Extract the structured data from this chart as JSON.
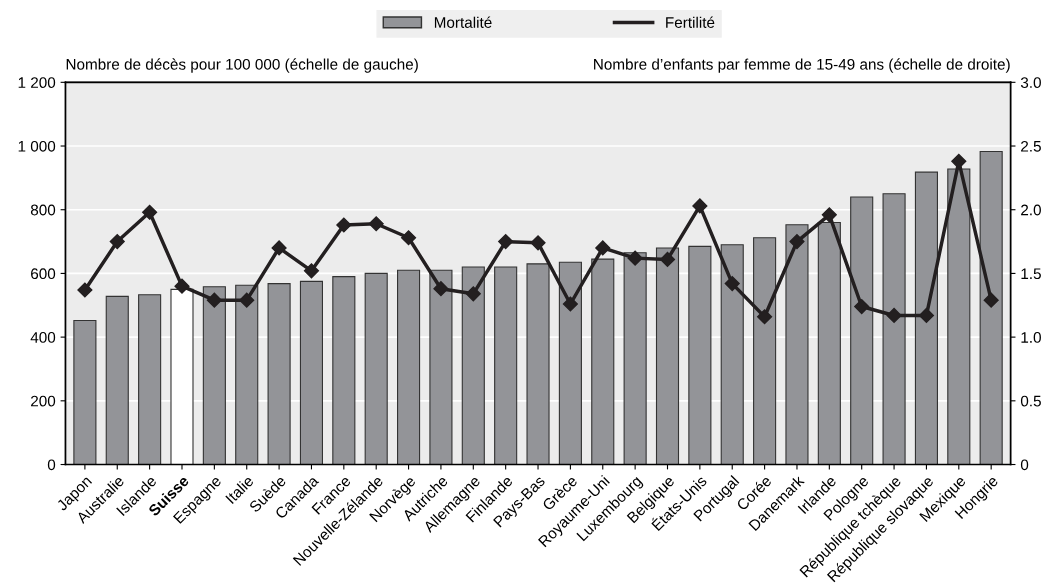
{
  "chart_data": {
    "type": "bar",
    "categories": [
      "Japon",
      "Australie",
      "Islande",
      "Suisse",
      "Espagne",
      "Italie",
      "Suède",
      "Canada",
      "France",
      "Nouvelle-Zélande",
      "Norvège",
      "Autriche",
      "Allemagne",
      "Finlande",
      "Pays-Bas",
      "Grèce",
      "Royaume-Uni",
      "Luxembourg",
      "Belgique",
      "États-Unis",
      "Portugal",
      "Corée",
      "Danemark",
      "Irlande",
      "Pologne",
      "République tchèque",
      "République slovaque",
      "Mexique",
      "Hongrie"
    ],
    "series": [
      {
        "name": "Mortalité",
        "color": "#939498",
        "colors": [
          "#939498",
          "#939498",
          "#939498",
          "#ffffff",
          "#939498",
          "#939498",
          "#939498",
          "#939498",
          "#939498",
          "#939498",
          "#939498",
          "#939498",
          "#939498",
          "#939498",
          "#939498",
          "#939498",
          "#939498",
          "#939498",
          "#939498",
          "#939498",
          "#939498",
          "#939498",
          "#939498",
          "#939498",
          "#939498",
          "#939498",
          "#939498",
          "#939498",
          "#939498"
        ],
        "values": [
          452,
          528,
          533,
          550,
          558,
          563,
          568,
          575,
          590,
          600,
          610,
          610,
          620,
          620,
          630,
          635,
          645,
          665,
          680,
          685,
          690,
          712,
          753,
          760,
          840,
          850,
          918,
          928,
          983
        ]
      },
      {
        "name": "Fertilité",
        "type": "line",
        "axis": "y2",
        "color": "#231f20",
        "marker": "diamond",
        "values": [
          1.37,
          1.75,
          1.98,
          1.4,
          1.29,
          1.29,
          1.7,
          1.52,
          1.88,
          1.89,
          1.78,
          1.38,
          1.34,
          1.75,
          1.74,
          1.26,
          1.7,
          1.62,
          1.61,
          2.03,
          1.42,
          1.16,
          1.75,
          1.96,
          1.24,
          1.17,
          1.17,
          2.38,
          1.29
        ]
      }
    ],
    "ylabel": "Nombre de décès pour 100 000 (échelle de gauche)",
    "y2label": "Nombre d’enfants par femme de 15-49 ans (échelle de droite)",
    "ylim": [
      0,
      1200
    ],
    "yticks": [
      0,
      200,
      400,
      600,
      800,
      {
        "value": 1000,
        "label": "1 000"
      },
      {
        "value": 1200,
        "label": "1 200"
      }
    ],
    "y2lim": [
      0,
      3
    ],
    "y2ticks": [
      0,
      0.5,
      {
        "value": 1,
        "label": "1.0"
      },
      1.5,
      {
        "value": 2,
        "label": "2.0"
      },
      2.5,
      {
        "value": 3,
        "label": "3.0"
      }
    ],
    "grid": "y",
    "legend": "top"
  }
}
